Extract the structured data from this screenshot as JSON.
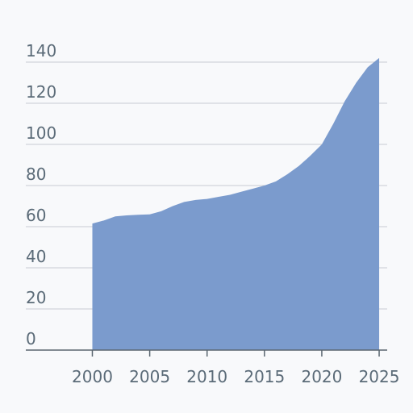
{
  "chart_data": {
    "type": "area",
    "title": "",
    "xlabel": "",
    "ylabel": "",
    "x": [
      2000,
      2001,
      2002,
      2003,
      2004,
      2005,
      2006,
      2007,
      2008,
      2009,
      2010,
      2011,
      2012,
      2013,
      2014,
      2015,
      2016,
      2017,
      2018,
      2019,
      2020,
      2021,
      2022,
      2023,
      2024,
      2025
    ],
    "series": [
      {
        "values": [
          61.5,
          63,
          65,
          65.5,
          65.8,
          66,
          67.5,
          70,
          72,
          73,
          73.5,
          74.5,
          75.5,
          77,
          78.5,
          80,
          82,
          85.5,
          89.5,
          94.5,
          100,
          110,
          121,
          130,
          137.5,
          142
        ]
      }
    ],
    "x_ticks": [
      "2000",
      "2005",
      "2010",
      "2015",
      "2020",
      "2025"
    ],
    "y_ticks": [
      "0",
      "20",
      "40",
      "60",
      "80",
      "100",
      "120",
      "140"
    ],
    "xlim": [
      1994.2,
      2025.7
    ],
    "ylim": [
      0,
      140
    ],
    "grid": true,
    "legend": "none",
    "colors": {
      "fill": "#7b9bcd",
      "grid": "#c9ccd3",
      "axis": "#5a6670",
      "label": "#5b6b78"
    }
  }
}
